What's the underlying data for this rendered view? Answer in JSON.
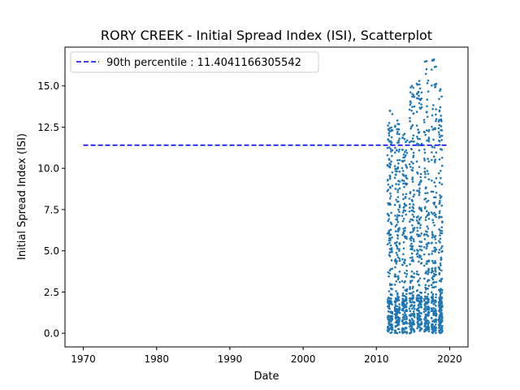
{
  "chart_data": {
    "type": "scatter",
    "title": "RORY CREEK - Initial Spread Index (ISI), Scatterplot",
    "xlabel": "Date",
    "ylabel": "Initial Spread Index (ISI)",
    "xlim": [
      1967.5,
      2022.5
    ],
    "ylim": [
      -0.83,
      17.35
    ],
    "x_ticks": [
      1970,
      1980,
      1990,
      2000,
      2010,
      2020
    ],
    "x_tick_labels": [
      "1970",
      "1980",
      "1990",
      "2000",
      "2010",
      "2020"
    ],
    "y_ticks": [
      0.0,
      2.5,
      5.0,
      7.5,
      10.0,
      12.5,
      15.0
    ],
    "y_tick_labels": [
      "0.0",
      "2.5",
      "5.0",
      "7.5",
      "10.0",
      "12.5",
      "15.0"
    ],
    "grid": false,
    "legend_position": "top-left",
    "series": [
      {
        "name": "90th percentile : 11.4041166305542",
        "kind": "hline",
        "value": 11.4041166305542,
        "x_range": [
          1970,
          2019.9
        ],
        "color": "#0000ff",
        "style": "dashed"
      },
      {
        "kind": "points",
        "color": "#1f77b4",
        "seasons": [
          {
            "x_range": [
              2011.5,
              2012.2
            ],
            "ymax": 13.5
          },
          {
            "x_range": [
              2012.5,
              2013.2
            ],
            "ymax": 12.9
          },
          {
            "x_range": [
              2013.5,
              2014.2
            ],
            "ymax": 12.1
          },
          {
            "x_range": [
              2014.5,
              2015.2
            ],
            "ymax": 15.0
          },
          {
            "x_range": [
              2015.5,
              2016.2
            ],
            "ymax": 15.3
          },
          {
            "x_range": [
              2016.5,
              2017.2
            ],
            "ymax": 16.5
          },
          {
            "x_range": [
              2017.5,
              2018.2
            ],
            "ymax": 16.6
          },
          {
            "x_range": [
              2018.5,
              2019.0
            ],
            "ymax": 14.8
          }
        ]
      }
    ]
  }
}
